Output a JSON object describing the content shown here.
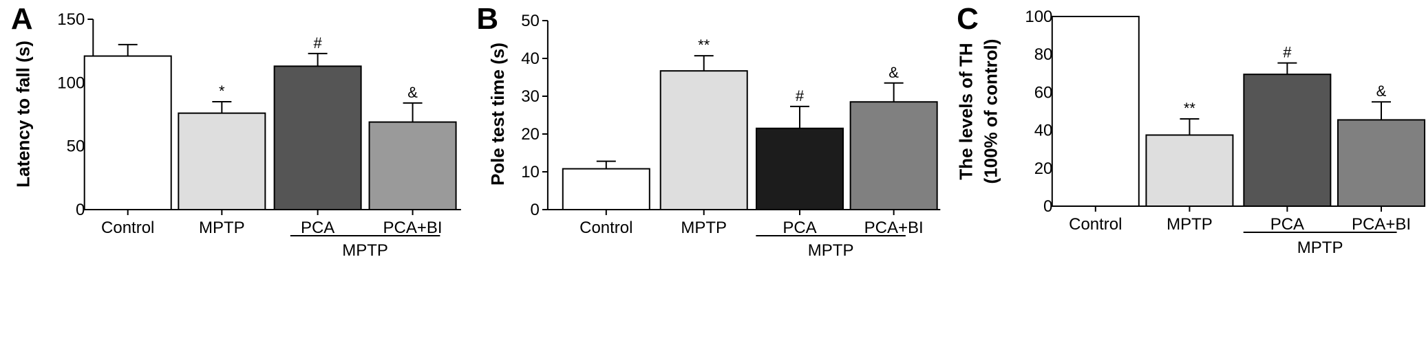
{
  "chart_data": [
    {
      "type": "bar",
      "panel": "A",
      "ylabel": "Latency to fall (s)",
      "ylim": [
        0,
        150
      ],
      "yticks": [
        0,
        50,
        100,
        150
      ],
      "categories": [
        "Control",
        "MPTP",
        "PCA",
        "PCA+BI"
      ],
      "values": [
        121,
        76,
        113,
        69
      ],
      "errors": [
        9,
        9,
        10,
        15
      ],
      "colors": [
        "#ffffff",
        "#dedede",
        "#555555",
        "#9a9a9a"
      ],
      "significance": [
        "",
        "*",
        "#",
        "&"
      ],
      "group_label": "MPTP",
      "grid": false
    },
    {
      "type": "bar",
      "panel": "B",
      "ylabel": "Pole test time (s)",
      "ylim": [
        0,
        50
      ],
      "yticks": [
        0,
        10,
        20,
        30,
        40,
        50
      ],
      "categories": [
        "Control",
        "MPTP",
        "PCA",
        "PCA+BI"
      ],
      "values": [
        10.8,
        36.7,
        21.5,
        28.5
      ],
      "errors": [
        2.0,
        4.0,
        5.8,
        5.0
      ],
      "colors": [
        "#ffffff",
        "#dedede",
        "#1c1c1c",
        "#808080"
      ],
      "significance": [
        "",
        "**",
        "#",
        "&"
      ],
      "group_label": "MPTP",
      "grid": false
    },
    {
      "type": "bar",
      "panel": "C",
      "ylabel": "The levels of TH",
      "ylabel2": "(100% of control)",
      "ylim": [
        0,
        100
      ],
      "yticks": [
        0,
        20,
        40,
        60,
        80,
        100
      ],
      "categories": [
        "Control",
        "MPTP",
        "PCA",
        "PCA+BI"
      ],
      "values": [
        100,
        37.5,
        69.5,
        45.5
      ],
      "errors": [
        0,
        8.5,
        6,
        9.5
      ],
      "colors": [
        "#ffffff",
        "#dedede",
        "#555555",
        "#808080"
      ],
      "significance": [
        "",
        "**",
        "#",
        "&"
      ],
      "group_label": "MPTP",
      "grid": false
    }
  ]
}
